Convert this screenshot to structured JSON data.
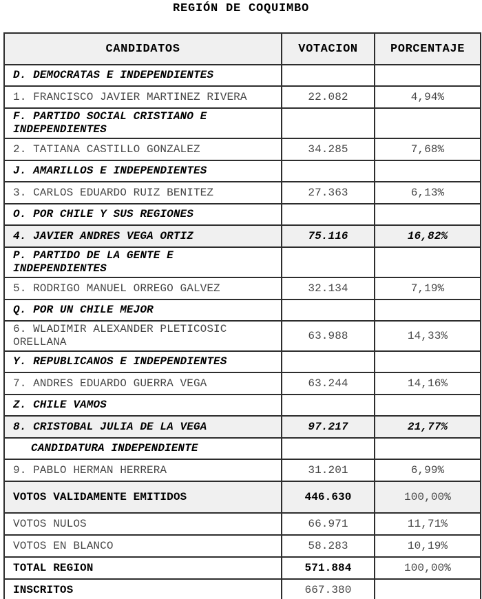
{
  "title": "REGIÓN DE COQUIMBO",
  "table": {
    "headers": [
      "CANDIDATOS",
      "VOTACION",
      "PORCENTAJE"
    ],
    "rows": [
      {
        "kind": "party",
        "label": "D. DEMOCRATAS E INDEPENDIENTES",
        "votes": "",
        "pct": ""
      },
      {
        "kind": "cand",
        "label": "1. FRANCISCO JAVIER MARTINEZ RIVERA",
        "votes": "22.082",
        "pct": "4,94%"
      },
      {
        "kind": "party",
        "label": "F. PARTIDO SOCIAL CRISTIANO E INDEPENDIENTES",
        "votes": "",
        "pct": ""
      },
      {
        "kind": "cand",
        "label": "2. TATIANA CASTILLO GONZALEZ",
        "votes": "34.285",
        "pct": "7,68%"
      },
      {
        "kind": "party",
        "label": "J. AMARILLOS E INDEPENDIENTES",
        "votes": "",
        "pct": ""
      },
      {
        "kind": "cand",
        "label": "3. CARLOS EDUARDO RUIZ BENITEZ",
        "votes": "27.363",
        "pct": "6,13%"
      },
      {
        "kind": "party",
        "label": "O. POR CHILE Y SUS REGIONES",
        "votes": "",
        "pct": ""
      },
      {
        "kind": "hl",
        "label": "4. JAVIER ANDRES VEGA ORTIZ",
        "votes": "75.116",
        "pct": "16,82%"
      },
      {
        "kind": "party",
        "label": "P. PARTIDO DE LA GENTE E INDEPENDIENTES",
        "votes": "",
        "pct": ""
      },
      {
        "kind": "cand",
        "label": "5. RODRIGO MANUEL ORREGO GALVEZ",
        "votes": "32.134",
        "pct": "7,19%"
      },
      {
        "kind": "party",
        "label": "Q. POR UN CHILE MEJOR",
        "votes": "",
        "pct": ""
      },
      {
        "kind": "cand",
        "label": "6. WLADIMIR ALEXANDER PLETICOSIC ORELLANA",
        "votes": "63.988",
        "pct": "14,33%"
      },
      {
        "kind": "party",
        "label": "Y. REPUBLICANOS E INDEPENDIENTES",
        "votes": "",
        "pct": ""
      },
      {
        "kind": "cand",
        "label": "7. ANDRES EDUARDO GUERRA VEGA",
        "votes": "63.244",
        "pct": "14,16%"
      },
      {
        "kind": "party",
        "label": "Z. CHILE VAMOS",
        "votes": "",
        "pct": ""
      },
      {
        "kind": "hl",
        "label": "8. CRISTOBAL JULIA DE LA VEGA",
        "votes": "97.217",
        "pct": "21,77%"
      },
      {
        "kind": "party-indent",
        "label": "CANDIDATURA INDEPENDIENTE",
        "votes": "",
        "pct": ""
      },
      {
        "kind": "cand",
        "label": "9. PABLO HERMAN HERRERA",
        "votes": "31.201",
        "pct": "6,99%"
      },
      {
        "kind": "valid-total",
        "label": "VOTOS VALIDAMENTE EMITIDOS",
        "votes": "446.630",
        "pct": "100,00%"
      },
      {
        "kind": "sub",
        "label": "VOTOS NULOS",
        "votes": "66.971",
        "pct": "11,71%"
      },
      {
        "kind": "sub",
        "label": "VOTOS EN BLANCO",
        "votes": "58.283",
        "pct": "10,19%"
      },
      {
        "kind": "total",
        "label": "TOTAL REGION",
        "votes": "571.884",
        "pct": "100,00%"
      },
      {
        "kind": "inscritos",
        "label": "INSCRITOS",
        "votes": "667.380",
        "pct": ""
      }
    ]
  }
}
